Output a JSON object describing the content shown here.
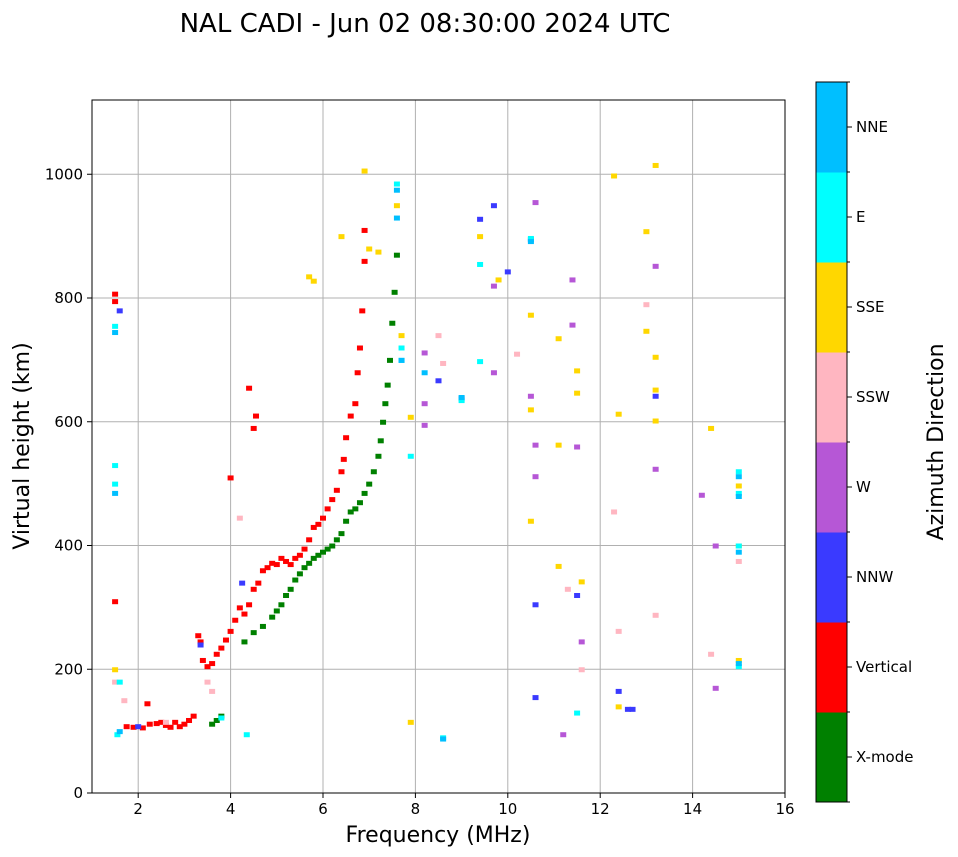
{
  "chart_data": {
    "type": "scatter",
    "title": "NAL CADI - Jun 02 08:30:00 2024 UTC",
    "xlabel": "Frequency (MHz)",
    "ylabel": "Virtual height (km)",
    "xlim": [
      1,
      16
    ],
    "ylim": [
      0,
      1120
    ],
    "xticks": [
      2,
      4,
      6,
      8,
      10,
      12,
      14,
      16
    ],
    "yticks": [
      0,
      200,
      400,
      600,
      800,
      1000
    ],
    "grid": true,
    "colorbar": {
      "label": "Azimuth Direction",
      "categories": [
        {
          "name": "X-mode",
          "color": "#008000"
        },
        {
          "name": "Vertical",
          "color": "#ff0000"
        },
        {
          "name": "NNW",
          "color": "#3a3aff"
        },
        {
          "name": "W",
          "color": "#b657d6"
        },
        {
          "name": "SSW",
          "color": "#ffb6c1"
        },
        {
          "name": "SSE",
          "color": "#ffd700"
        },
        {
          "name": "E",
          "color": "#00ffff"
        },
        {
          "name": "NNE",
          "color": "#00bfff"
        }
      ]
    },
    "series": [
      {
        "name": "Vertical",
        "points": [
          [
            1.5,
            807
          ],
          [
            1.5,
            795
          ],
          [
            1.5,
            310
          ],
          [
            1.75,
            108
          ],
          [
            1.9,
            107
          ],
          [
            2.1,
            106
          ],
          [
            2.2,
            145
          ],
          [
            2.25,
            112
          ],
          [
            2.4,
            113
          ],
          [
            2.5,
            115
          ],
          [
            2.6,
            110
          ],
          [
            2.7,
            107
          ],
          [
            2.8,
            115
          ],
          [
            2.9,
            108
          ],
          [
            3.0,
            112
          ],
          [
            3.1,
            118
          ],
          [
            3.2,
            125
          ],
          [
            3.3,
            255
          ],
          [
            3.35,
            245
          ],
          [
            3.4,
            215
          ],
          [
            3.5,
            205
          ],
          [
            3.6,
            210
          ],
          [
            3.7,
            225
          ],
          [
            3.8,
            235
          ],
          [
            3.9,
            248
          ],
          [
            4.0,
            262
          ],
          [
            4.1,
            280
          ],
          [
            4.2,
            300
          ],
          [
            4.3,
            290
          ],
          [
            4.4,
            305
          ],
          [
            4.5,
            330
          ],
          [
            4.55,
            610
          ],
          [
            4.6,
            340
          ],
          [
            4.7,
            360
          ],
          [
            4.8,
            365
          ],
          [
            4.9,
            372
          ],
          [
            5.0,
            370
          ],
          [
            5.1,
            380
          ],
          [
            5.2,
            375
          ],
          [
            5.3,
            370
          ],
          [
            5.4,
            380
          ],
          [
            5.5,
            385
          ],
          [
            5.6,
            395
          ],
          [
            5.7,
            410
          ],
          [
            5.8,
            430
          ],
          [
            5.9,
            435
          ],
          [
            6.0,
            445
          ],
          [
            6.1,
            460
          ],
          [
            6.2,
            475
          ],
          [
            6.3,
            490
          ],
          [
            6.4,
            520
          ],
          [
            6.45,
            540
          ],
          [
            6.5,
            575
          ],
          [
            6.6,
            610
          ],
          [
            6.7,
            630
          ],
          [
            6.75,
            680
          ],
          [
            6.8,
            720
          ],
          [
            6.85,
            780
          ],
          [
            6.9,
            860
          ],
          [
            6.9,
            910
          ],
          [
            4.0,
            510
          ],
          [
            4.4,
            655
          ],
          [
            4.5,
            590
          ]
        ]
      },
      {
        "name": "X-mode",
        "points": [
          [
            3.6,
            112
          ],
          [
            3.7,
            118
          ],
          [
            3.8,
            125
          ],
          [
            4.3,
            245
          ],
          [
            4.5,
            260
          ],
          [
            4.7,
            270
          ],
          [
            4.9,
            285
          ],
          [
            5.0,
            295
          ],
          [
            5.1,
            305
          ],
          [
            5.2,
            320
          ],
          [
            5.3,
            330
          ],
          [
            5.4,
            345
          ],
          [
            5.5,
            355
          ],
          [
            5.6,
            365
          ],
          [
            5.7,
            372
          ],
          [
            5.8,
            380
          ],
          [
            5.9,
            385
          ],
          [
            6.0,
            390
          ],
          [
            6.1,
            395
          ],
          [
            6.2,
            400
          ],
          [
            6.3,
            410
          ],
          [
            6.4,
            420
          ],
          [
            6.5,
            440
          ],
          [
            6.6,
            455
          ],
          [
            6.7,
            460
          ],
          [
            6.8,
            470
          ],
          [
            6.9,
            485
          ],
          [
            7.0,
            500
          ],
          [
            7.1,
            520
          ],
          [
            7.2,
            545
          ],
          [
            7.25,
            570
          ],
          [
            7.3,
            600
          ],
          [
            7.35,
            630
          ],
          [
            7.4,
            660
          ],
          [
            7.45,
            700
          ],
          [
            7.5,
            760
          ],
          [
            7.55,
            810
          ],
          [
            7.6,
            870
          ]
        ]
      },
      {
        "name": "NNW",
        "points": [
          [
            1.6,
            780
          ],
          [
            2.0,
            108
          ],
          [
            3.35,
            240
          ],
          [
            4.25,
            340
          ],
          [
            8.5,
            667
          ],
          [
            9.0,
            638
          ],
          [
            9.4,
            928
          ],
          [
            9.7,
            950
          ],
          [
            10.0,
            843
          ],
          [
            10.5,
            895
          ],
          [
            10.6,
            155
          ],
          [
            10.6,
            305
          ],
          [
            11.5,
            320
          ],
          [
            12.4,
            165
          ],
          [
            12.6,
            136
          ],
          [
            12.7,
            136
          ],
          [
            13.2,
            642
          ]
        ]
      },
      {
        "name": "W",
        "points": [
          [
            8.2,
            712
          ],
          [
            8.2,
            630
          ],
          [
            8.2,
            595
          ],
          [
            9.7,
            820
          ],
          [
            9.7,
            680
          ],
          [
            10.6,
            955
          ],
          [
            10.6,
            563
          ],
          [
            10.6,
            512
          ],
          [
            10.5,
            642
          ],
          [
            11.2,
            95
          ],
          [
            11.4,
            830
          ],
          [
            11.4,
            757
          ],
          [
            11.5,
            560
          ],
          [
            11.6,
            245
          ],
          [
            13.2,
            852
          ],
          [
            13.2,
            524
          ],
          [
            14.2,
            482
          ],
          [
            14.5,
            400
          ],
          [
            14.5,
            170
          ]
        ]
      },
      {
        "name": "SSW",
        "points": [
          [
            1.5,
            180
          ],
          [
            1.7,
            150
          ],
          [
            2.6,
            115
          ],
          [
            3.5,
            180
          ],
          [
            3.6,
            165
          ],
          [
            4.2,
            445
          ],
          [
            8.5,
            740
          ],
          [
            8.6,
            695
          ],
          [
            10.2,
            710
          ],
          [
            12.3,
            455
          ],
          [
            12.4,
            262
          ],
          [
            13.0,
            790
          ],
          [
            13.2,
            288
          ],
          [
            14.4,
            225
          ],
          [
            15.0,
            375
          ],
          [
            11.3,
            330
          ],
          [
            11.6,
            200
          ]
        ]
      },
      {
        "name": "SSE",
        "points": [
          [
            1.5,
            200
          ],
          [
            5.7,
            835
          ],
          [
            5.8,
            828
          ],
          [
            6.4,
            900
          ],
          [
            6.9,
            1006
          ],
          [
            7.0,
            880
          ],
          [
            7.2,
            875
          ],
          [
            7.6,
            950
          ],
          [
            7.7,
            740
          ],
          [
            7.9,
            608
          ],
          [
            7.9,
            115
          ],
          [
            9.4,
            900
          ],
          [
            9.8,
            830
          ],
          [
            10.5,
            773
          ],
          [
            10.5,
            620
          ],
          [
            10.5,
            440
          ],
          [
            11.1,
            735
          ],
          [
            11.1,
            563
          ],
          [
            11.1,
            367
          ],
          [
            11.5,
            683
          ],
          [
            11.5,
            647
          ],
          [
            11.6,
            342
          ],
          [
            12.3,
            998
          ],
          [
            12.4,
            613
          ],
          [
            12.4,
            140
          ],
          [
            13.0,
            908
          ],
          [
            13.0,
            747
          ],
          [
            13.2,
            1015
          ],
          [
            13.2,
            705
          ],
          [
            13.2,
            652
          ],
          [
            13.2,
            602
          ],
          [
            14.4,
            590
          ],
          [
            15.0,
            400
          ],
          [
            15.0,
            497
          ],
          [
            15.0,
            215
          ]
        ]
      },
      {
        "name": "E",
        "points": [
          [
            1.5,
            755
          ],
          [
            1.5,
            530
          ],
          [
            1.5,
            500
          ],
          [
            1.6,
            180
          ],
          [
            1.55,
            95
          ],
          [
            3.8,
            122
          ],
          [
            4.35,
            95
          ],
          [
            7.6,
            985
          ],
          [
            7.7,
            720
          ],
          [
            7.7,
            700
          ],
          [
            7.9,
            545
          ],
          [
            8.6,
            90
          ],
          [
            9.0,
            635
          ],
          [
            9.4,
            855
          ],
          [
            9.4,
            698
          ],
          [
            10.5,
            897
          ],
          [
            11.5,
            130
          ],
          [
            15.0,
            485
          ],
          [
            15.0,
            520
          ],
          [
            15.0,
            400
          ],
          [
            15.0,
            205
          ]
        ]
      },
      {
        "name": "NNE",
        "points": [
          [
            1.5,
            745
          ],
          [
            1.5,
            485
          ],
          [
            1.6,
            100
          ],
          [
            7.6,
            975
          ],
          [
            7.6,
            930
          ],
          [
            7.7,
            700
          ],
          [
            8.2,
            680
          ],
          [
            8.6,
            88
          ],
          [
            9.0,
            640
          ],
          [
            10.5,
            892
          ],
          [
            15.0,
            480
          ],
          [
            15.0,
            512
          ],
          [
            15.0,
            390
          ],
          [
            15.0,
            210
          ]
        ]
      }
    ]
  }
}
